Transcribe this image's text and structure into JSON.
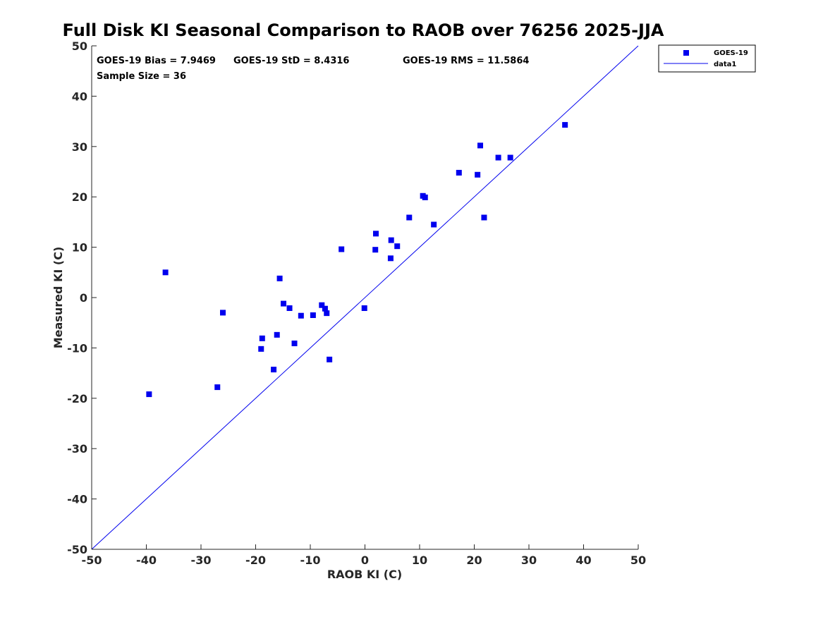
{
  "chart_data": {
    "type": "scatter",
    "title": "Full Disk KI Seasonal Comparison to RAOB over 76256 2025-JJA",
    "xlabel": "RAOB KI (C)",
    "ylabel": "Measured KI (C)",
    "xlim": [
      -50,
      50
    ],
    "ylim": [
      -50,
      50
    ],
    "xticks": [
      -50,
      -40,
      -30,
      -20,
      -10,
      0,
      10,
      20,
      30,
      40,
      50
    ],
    "yticks": [
      -50,
      -40,
      -30,
      -20,
      -10,
      0,
      10,
      20,
      30,
      40,
      50
    ],
    "grid": false,
    "legend_position": "top-right (outside axes)",
    "stats": {
      "bias": "GOES-19 Bias = 7.9469",
      "std": "GOES-19 StD = 8.4316",
      "rms": "GOES-19 RMS = 11.5864",
      "sample": "Sample Size = 36"
    },
    "series": [
      {
        "name": "GOES-19",
        "marker": "square",
        "color": "#0000ee",
        "x": [
          -39.5,
          -36.5,
          -27,
          -26,
          -19,
          -18.8,
          -16.7,
          -16.1,
          -15.6,
          -14.9,
          -13.8,
          -12.9,
          -11.7,
          -9.5,
          -7.9,
          -7.3,
          -7.0,
          -6.5,
          -4.3,
          -0.1,
          1.9,
          2.0,
          4.7,
          4.8,
          5.9,
          8.1,
          10.6,
          11.0,
          12.6,
          17.2,
          20.6,
          21.1,
          21.8,
          24.4,
          26.6,
          36.6
        ],
        "y": [
          -19.2,
          5.0,
          -17.8,
          -3.0,
          -10.2,
          -8.1,
          -14.3,
          -7.4,
          3.8,
          -1.2,
          -2.1,
          -9.1,
          -3.6,
          -3.5,
          -1.5,
          -2.2,
          -3.1,
          -12.3,
          9.6,
          -2.1,
          9.5,
          12.7,
          7.8,
          11.4,
          10.2,
          15.9,
          20.2,
          19.9,
          14.5,
          24.8,
          24.4,
          30.2,
          15.9,
          27.8,
          27.8,
          34.3
        ]
      },
      {
        "name": "data1",
        "style": "line",
        "color": "#0000ee",
        "x": [
          -50,
          50
        ],
        "y": [
          -50,
          50
        ]
      }
    ]
  }
}
